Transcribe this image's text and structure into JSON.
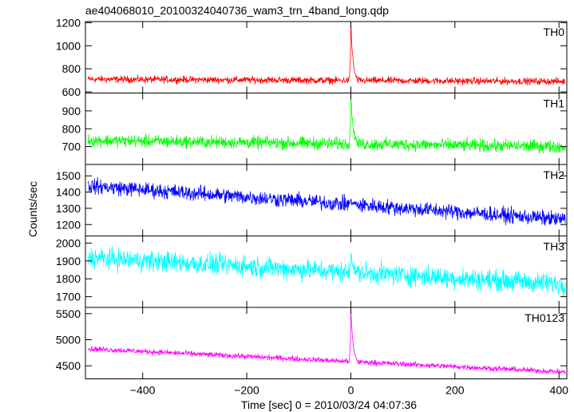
{
  "chart_data": {
    "type": "line",
    "title": "ae404068010_20100324040736_wam3_trn_4band_long.qdp",
    "xlabel": "Time [sec] 0 = 2010/03/24 04:07:36",
    "ylabel": "Counts/sec",
    "xlim": [
      -510,
      415
    ],
    "xticks": [
      -400,
      -200,
      0,
      200,
      400
    ],
    "xtick_labels": [
      "−400",
      "−200",
      "0",
      "200",
      "400"
    ],
    "panels": [
      {
        "name": "TH0",
        "color": "#ff0000",
        "ylim": [
          590,
          1210
        ],
        "yticks": [
          600,
          800,
          1000,
          1200
        ],
        "baseline_start": 710,
        "baseline_end": 690,
        "noise": 26,
        "peak": 1200
      },
      {
        "name": "TH1",
        "color": "#00ff00",
        "ylim": [
          600,
          1000
        ],
        "yticks": [
          700,
          800,
          900
        ],
        "baseline_start": 735,
        "baseline_end": 700,
        "noise": 30,
        "peak": 990
      },
      {
        "name": "TH2",
        "color": "#0000ff",
        "ylim": [
          1130,
          1570
        ],
        "yticks": [
          1200,
          1300,
          1400,
          1500
        ],
        "baseline_start": 1440,
        "baseline_end": 1230,
        "noise": 40,
        "peak": 1350
      },
      {
        "name": "TH3",
        "color": "#00ffff",
        "ylim": [
          1640,
          2040
        ],
        "yticks": [
          1700,
          1800,
          1900,
          2000
        ],
        "baseline_start": 1920,
        "baseline_end": 1770,
        "noise": 50,
        "peak": 1950
      },
      {
        "name": "TH0123",
        "color": "#ff00ff",
        "ylim": [
          4250,
          5620
        ],
        "yticks": [
          4500,
          5000,
          5500
        ],
        "baseline_start": 4830,
        "baseline_end": 4380,
        "noise": 45,
        "peak": 5600
      }
    ],
    "grid": false,
    "legend": "none"
  }
}
